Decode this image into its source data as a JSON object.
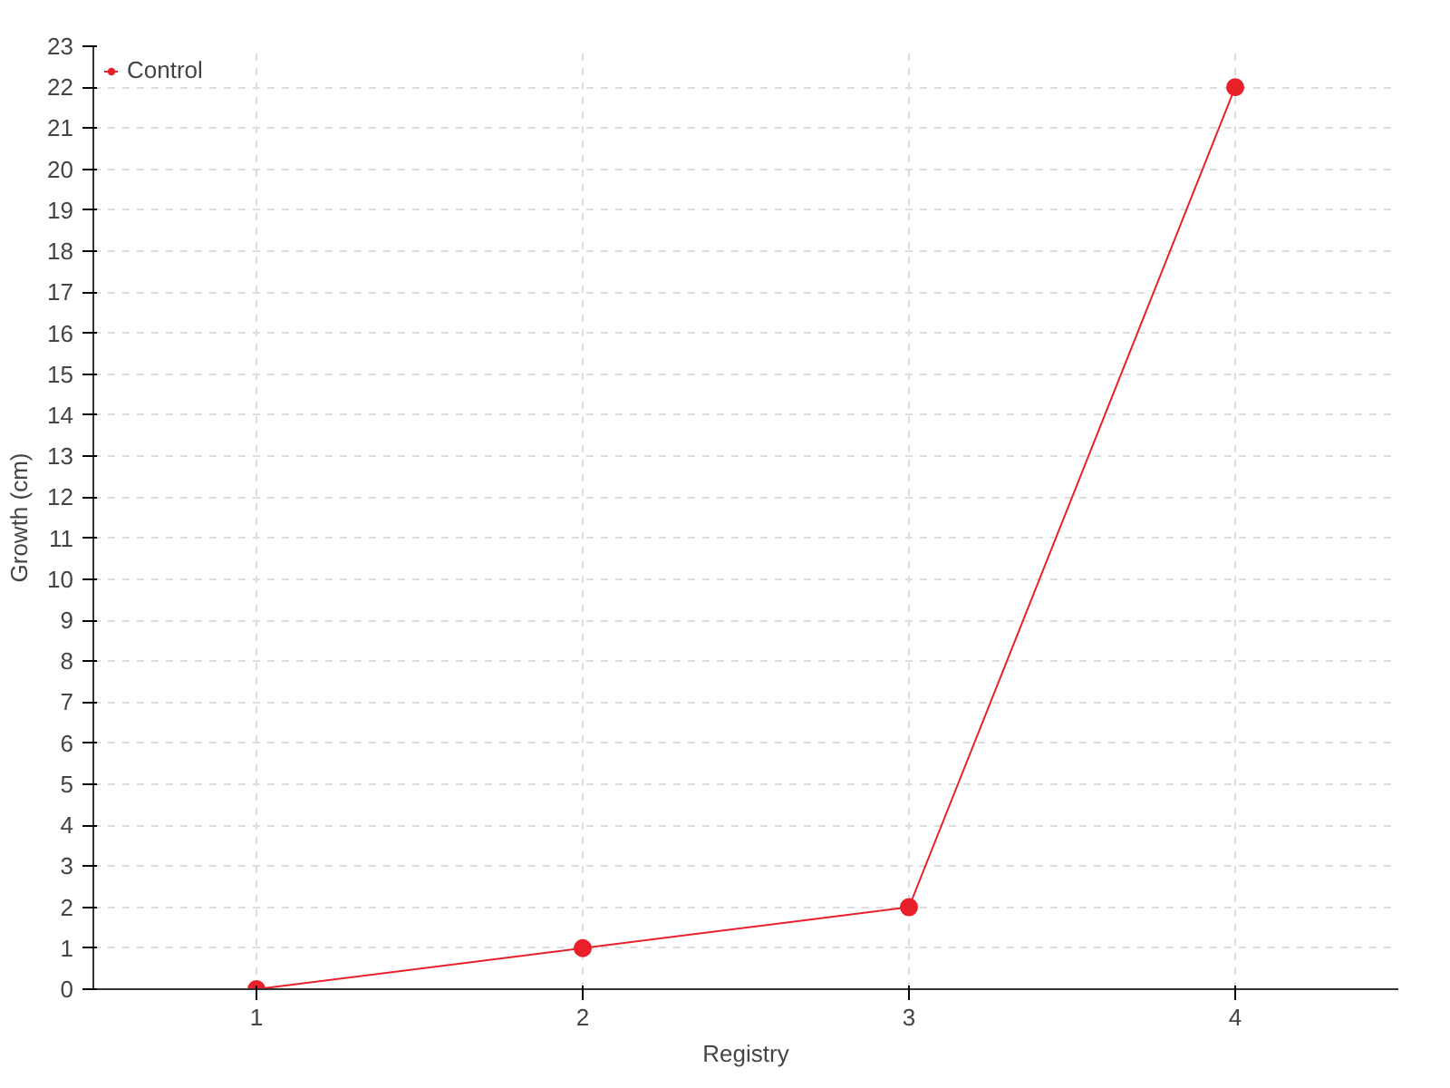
{
  "chart_data": {
    "type": "line",
    "xlabel": "Registry",
    "ylabel": "Growth (cm)",
    "x": [
      1,
      2,
      3,
      4
    ],
    "series": [
      {
        "name": "Control",
        "color": "#e8202a",
        "values": [
          0,
          1,
          2,
          22
        ]
      }
    ],
    "xlim": [
      0.5,
      4.5
    ],
    "xticks": [
      1,
      2,
      3,
      4
    ],
    "ylim": [
      0,
      23
    ],
    "yticks": [
      0,
      1,
      2,
      3,
      4,
      5,
      6,
      7,
      8,
      9,
      10,
      11,
      12,
      13,
      14,
      15,
      16,
      17,
      18,
      19,
      20,
      21,
      22,
      23
    ],
    "grid": true,
    "legend": "top left",
    "marker": "circle",
    "line_style": "solid"
  }
}
